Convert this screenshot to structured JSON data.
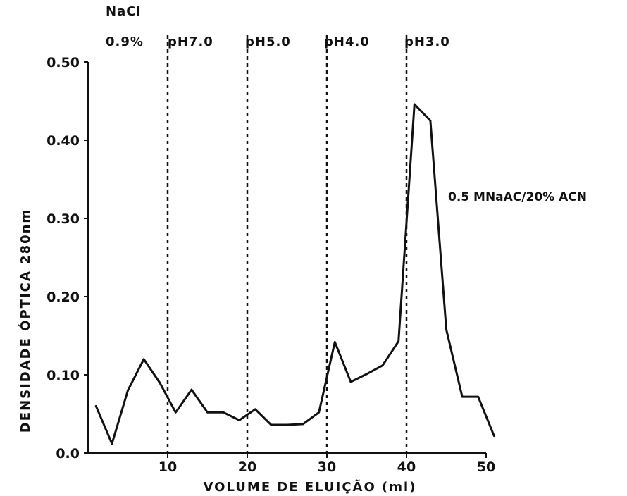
{
  "chart_data": {
    "type": "line",
    "title": "",
    "xlabel": "VOLUME DE ELUIÇÃO (ml)",
    "ylabel": "DENSIDADE ÓPTICA 280nm",
    "xlim": [
      0,
      50
    ],
    "ylim": [
      0,
      0.5
    ],
    "x_ticks": [
      {
        "value": 10,
        "label": "10"
      },
      {
        "value": 20,
        "label": "20"
      },
      {
        "value": 30,
        "label": "30"
      },
      {
        "value": 40,
        "label": "40"
      },
      {
        "value": 50,
        "label": "50"
      }
    ],
    "y_ticks": [
      {
        "value": 0.0,
        "label": "0.0"
      },
      {
        "value": 0.1,
        "label": "0.10"
      },
      {
        "value": 0.2,
        "label": "0.20"
      },
      {
        "value": 0.3,
        "label": "0.30"
      },
      {
        "value": 0.4,
        "label": "0.40"
      },
      {
        "value": 0.5,
        "label": "0.50"
      }
    ],
    "grid": false,
    "series": [
      {
        "x": [
          1,
          3,
          5,
          7,
          9,
          11,
          13,
          15,
          17,
          19,
          21,
          23,
          25,
          27,
          29,
          31,
          33,
          35,
          37,
          39,
          41,
          43,
          45,
          47,
          49,
          51
        ],
        "y": [
          0.06,
          0.012,
          0.08,
          0.12,
          0.09,
          0.052,
          0.081,
          0.052,
          0.052,
          0.042,
          0.056,
          0.036,
          0.036,
          0.037,
          0.052,
          0.142,
          0.091,
          0.101,
          0.112,
          0.143,
          0.446,
          0.425,
          0.158,
          0.072,
          0.072,
          0.022
        ]
      }
    ],
    "dividers": [
      10,
      20,
      30,
      40
    ],
    "region_labels": [
      {
        "line1": "NaCl",
        "line2": "0.9%"
      },
      {
        "line1": "",
        "line2": "pH7.0"
      },
      {
        "line1": "",
        "line2": "pH5.0"
      },
      {
        "line1": "",
        "line2": "pH4.0"
      },
      {
        "line1": "",
        "line2": "pH3.0"
      }
    ],
    "annotation": "0.5 MNaAC/20% ACN",
    "colors": {
      "line": "#111111",
      "axis": "#111111"
    }
  }
}
